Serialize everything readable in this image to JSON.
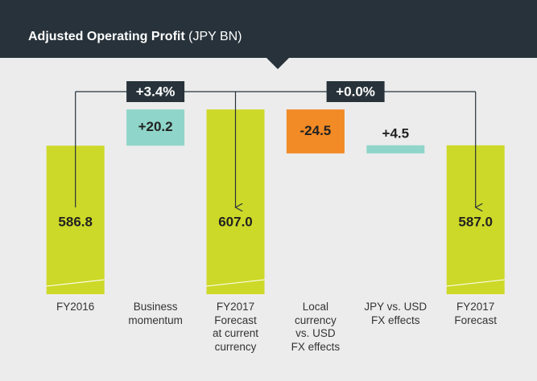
{
  "chart_data": {
    "type": "waterfall",
    "title": "Adjusted Operating Profit",
    "subtitle": "(JPY BN)",
    "categories": [
      "FY2016",
      "Business\nmomentum",
      "FY2017\nForecast\nat current\ncurrency",
      "Local\ncurrency\nvs. USD\nFX effects",
      "JPY vs. USD\nFX effects",
      "FY2017\nForecast"
    ],
    "values": [
      586.8,
      20.2,
      607.0,
      -24.5,
      4.5,
      587.0
    ],
    "value_labels": [
      "586.8",
      "+20.2",
      "607.0",
      "-24.5",
      "+4.5",
      "587.0"
    ],
    "totals": [
      true,
      false,
      true,
      false,
      false,
      true
    ],
    "colors": {
      "total": "#cdd928",
      "increase": "#8fd5c9",
      "decrease": "#f28a25"
    },
    "ylim": [
      504,
      625
    ],
    "annotations": [
      {
        "label": "+3.4%",
        "from": 0,
        "to": 2
      },
      {
        "label": "+0.0%",
        "from": 2,
        "to": 5
      }
    ]
  }
}
